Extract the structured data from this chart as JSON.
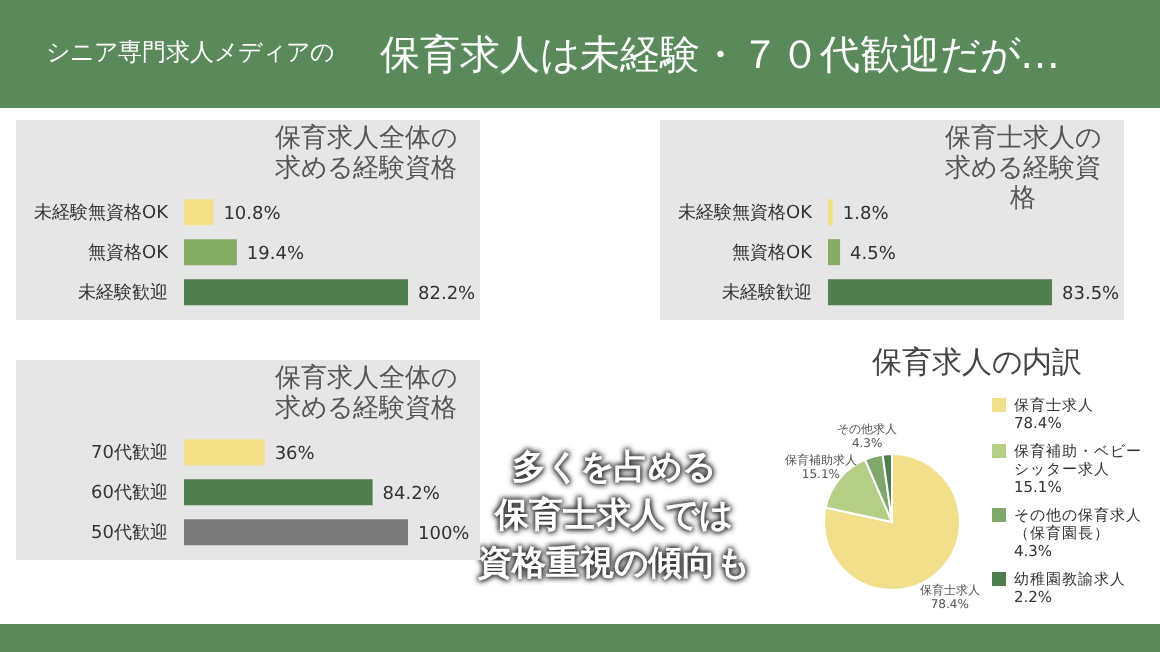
{
  "chart_data": [
    {
      "type": "other",
      "title": "保育求人は未経験・７０代歓迎だが…",
      "subtitle": "シニア専門求人メディアの",
      "annotations": [
        "多くを占める",
        "保育士求人では",
        "資格重視の傾向も"
      ]
    },
    {
      "type": "bar",
      "orientation": "horizontal",
      "title": "保育求人全体の求める経験資格",
      "categories": [
        "未経験無資格OK",
        "無資格OK",
        "未経験歓迎"
      ],
      "values": [
        10.8,
        19.4,
        82.2
      ],
      "colors": [
        "#f3df86",
        "#86ad63",
        "#4f7f4f"
      ],
      "value_labels": [
        "10.8%",
        "19.4%",
        "82.2%"
      ]
    },
    {
      "type": "bar",
      "orientation": "horizontal",
      "title": "保育士求人の求める経験資格",
      "categories": [
        "未経験無資格OK",
        "無資格OK",
        "未経験歓迎"
      ],
      "values": [
        1.8,
        4.5,
        83.5
      ],
      "colors": [
        "#f3df86",
        "#86ad63",
        "#4f7f4f"
      ],
      "value_labels": [
        "1.8%",
        "4.5%",
        "83.5%"
      ]
    },
    {
      "type": "bar",
      "orientation": "horizontal",
      "title": "保育求人全体の求める経験資格",
      "categories": [
        "70代歓迎",
        "60代歓迎",
        "50代歓迎"
      ],
      "values": [
        36,
        84.2,
        100
      ],
      "colors": [
        "#f3df86",
        "#4f7f4f",
        "#7a7a7a"
      ],
      "value_labels": [
        "36%",
        "84.2%",
        "100%"
      ]
    },
    {
      "type": "pie",
      "title": "保育求人の内訳",
      "categories": [
        "保育士求人",
        "保育補助・ベビーシッター求人",
        "その他の保育求人（保育園長）",
        "幼稚園教諭求人"
      ],
      "values": [
        78.4,
        15.1,
        4.3,
        2.2
      ],
      "colors": [
        "#f2df8b",
        "#b6cf86",
        "#7fa86a",
        "#4d7e4d"
      ],
      "value_labels": [
        "78.4%",
        "15.1%",
        "4.3%",
        "2.2%"
      ],
      "annotations": [
        "保育士求人\n78.4%",
        "保育補助求人\n15.1%",
        "その他求人\n4.3%"
      ],
      "legend": "right"
    }
  ]
}
